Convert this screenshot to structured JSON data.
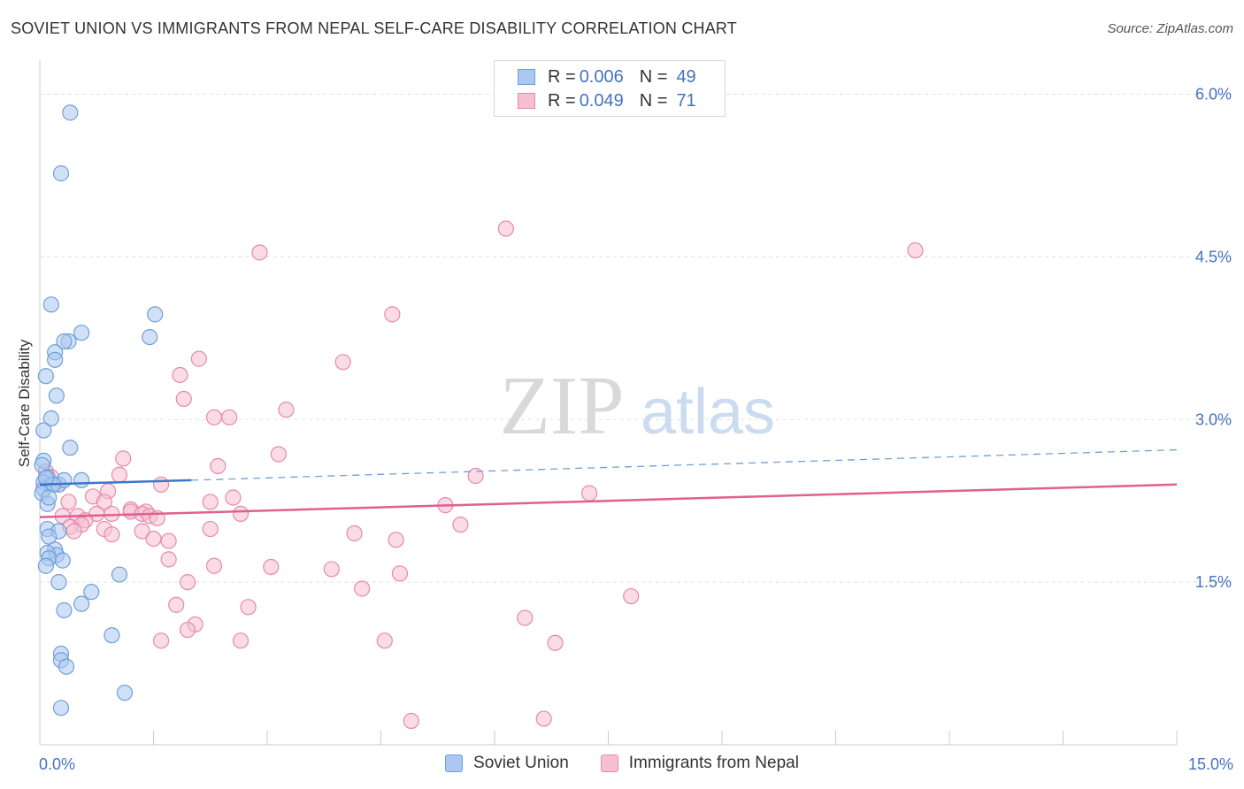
{
  "title": "SOVIET UNION VS IMMIGRANTS FROM NEPAL SELF-CARE DISABILITY CORRELATION CHART",
  "source": "Source: ZipAtlas.com",
  "watermark": {
    "zip": "ZIP",
    "atlas": "atlas"
  },
  "legend": {
    "rows": [
      {
        "r_label": "R = ",
        "r_value": "0.006",
        "n_label": "N = ",
        "n_value": "49"
      },
      {
        "r_label": "R = ",
        "r_value": "0.049",
        "n_label": "N = ",
        "n_value": "71"
      }
    ]
  },
  "colors": {
    "soviet_fill": "#aac8f0",
    "soviet_stroke": "#6f9fd8",
    "soviet_line": "#3a78c9",
    "nepal_fill": "#f7c0d2",
    "nepal_stroke": "#e58aa9",
    "nepal_line": "#e0608f",
    "tick_label": "#4472c4",
    "grid": "#e0e0e0"
  },
  "chart_data": {
    "type": "scatter",
    "title": "SOVIET UNION VS IMMIGRANTS FROM NEPAL SELF-CARE DISABILITY CORRELATION CHART",
    "xlabel": "",
    "ylabel": "Self-Care Disability",
    "xlim": [
      0,
      15
    ],
    "ylim": [
      0,
      6.2
    ],
    "x_tick_labels": [
      "0.0%",
      "15.0%"
    ],
    "y_ticks": [
      1.5,
      3.0,
      4.5,
      6.0
    ],
    "y_tick_labels": [
      "1.5%",
      "3.0%",
      "4.5%",
      "6.0%"
    ],
    "grid": true,
    "legend_position": "top-center",
    "series": [
      {
        "name": "Soviet Union",
        "r": 0.006,
        "n": 49,
        "trend": {
          "x": [
            0,
            2.0
          ],
          "y": [
            2.4,
            2.44
          ],
          "dashed_extension": {
            "x": [
              2.0,
              15.0
            ],
            "y": [
              2.44,
              2.72
            ]
          }
        },
        "points": [
          [
            0.4,
            5.83
          ],
          [
            0.28,
            5.27
          ],
          [
            0.15,
            4.06
          ],
          [
            0.55,
            3.8
          ],
          [
            0.38,
            3.72
          ],
          [
            0.32,
            3.72
          ],
          [
            0.2,
            3.62
          ],
          [
            0.2,
            3.55
          ],
          [
            0.08,
            3.4
          ],
          [
            0.22,
            3.22
          ],
          [
            0.15,
            3.01
          ],
          [
            0.05,
            2.9
          ],
          [
            0.4,
            2.74
          ],
          [
            0.05,
            2.62
          ],
          [
            0.03,
            2.58
          ],
          [
            0.1,
            2.47
          ],
          [
            0.05,
            2.42
          ],
          [
            0.15,
            2.4
          ],
          [
            0.25,
            2.4
          ],
          [
            0.32,
            2.44
          ],
          [
            0.55,
            2.44
          ],
          [
            0.05,
            2.36
          ],
          [
            0.03,
            2.32
          ],
          [
            0.1,
            2.22
          ],
          [
            0.1,
            1.99
          ],
          [
            0.25,
            1.97
          ],
          [
            0.12,
            1.92
          ],
          [
            0.2,
            1.8
          ],
          [
            0.22,
            1.75
          ],
          [
            0.1,
            1.77
          ],
          [
            0.12,
            1.72
          ],
          [
            0.3,
            1.7
          ],
          [
            0.08,
            1.65
          ],
          [
            1.05,
            1.57
          ],
          [
            0.25,
            1.5
          ],
          [
            0.68,
            1.41
          ],
          [
            0.55,
            1.3
          ],
          [
            0.32,
            1.24
          ],
          [
            0.95,
            1.01
          ],
          [
            0.28,
            0.84
          ],
          [
            0.28,
            0.78
          ],
          [
            0.35,
            0.72
          ],
          [
            1.12,
            0.48
          ],
          [
            0.28,
            0.34
          ],
          [
            0.18,
            2.4
          ],
          [
            0.08,
            2.46
          ],
          [
            1.45,
            3.76
          ],
          [
            1.52,
            3.97
          ],
          [
            0.12,
            2.28
          ]
        ]
      },
      {
        "name": "Immigrants from Nepal",
        "r": 0.049,
        "n": 71,
        "trend": {
          "x": [
            0,
            15.0
          ],
          "y": [
            2.1,
            2.4
          ]
        },
        "points": [
          [
            6.15,
            4.76
          ],
          [
            11.55,
            4.56
          ],
          [
            2.9,
            4.54
          ],
          [
            4.65,
            3.97
          ],
          [
            2.1,
            3.56
          ],
          [
            4.0,
            3.53
          ],
          [
            1.85,
            3.41
          ],
          [
            1.9,
            3.19
          ],
          [
            3.25,
            3.09
          ],
          [
            2.3,
            3.02
          ],
          [
            2.5,
            3.02
          ],
          [
            3.15,
            2.68
          ],
          [
            1.1,
            2.64
          ],
          [
            2.35,
            2.57
          ],
          [
            5.75,
            2.48
          ],
          [
            1.05,
            2.49
          ],
          [
            1.6,
            2.4
          ],
          [
            0.9,
            2.34
          ],
          [
            0.08,
            2.52
          ],
          [
            0.15,
            2.47
          ],
          [
            0.7,
            2.29
          ],
          [
            7.25,
            2.32
          ],
          [
            2.55,
            2.28
          ],
          [
            2.25,
            2.24
          ],
          [
            0.38,
            2.24
          ],
          [
            0.85,
            2.24
          ],
          [
            5.35,
            2.21
          ],
          [
            1.2,
            2.17
          ],
          [
            1.2,
            2.15
          ],
          [
            1.4,
            2.15
          ],
          [
            1.35,
            2.13
          ],
          [
            1.45,
            2.11
          ],
          [
            0.95,
            2.13
          ],
          [
            0.75,
            2.13
          ],
          [
            0.5,
            2.11
          ],
          [
            0.6,
            2.07
          ],
          [
            2.65,
            2.13
          ],
          [
            1.55,
            2.09
          ],
          [
            0.3,
            2.11
          ],
          [
            0.55,
            2.03
          ],
          [
            0.4,
            2.01
          ],
          [
            5.55,
            2.03
          ],
          [
            2.25,
            1.99
          ],
          [
            1.35,
            1.97
          ],
          [
            0.85,
            1.99
          ],
          [
            0.95,
            1.94
          ],
          [
            0.45,
            1.97
          ],
          [
            4.15,
            1.95
          ],
          [
            4.7,
            1.89
          ],
          [
            1.5,
            1.9
          ],
          [
            1.7,
            1.88
          ],
          [
            1.7,
            1.71
          ],
          [
            2.3,
            1.65
          ],
          [
            3.05,
            1.64
          ],
          [
            3.85,
            1.62
          ],
          [
            4.75,
            1.58
          ],
          [
            1.95,
            1.5
          ],
          [
            4.25,
            1.44
          ],
          [
            7.8,
            1.37
          ],
          [
            1.8,
            1.29
          ],
          [
            2.75,
            1.27
          ],
          [
            6.4,
            1.17
          ],
          [
            2.05,
            1.11
          ],
          [
            1.95,
            1.06
          ],
          [
            1.6,
            0.96
          ],
          [
            2.65,
            0.96
          ],
          [
            4.55,
            0.96
          ],
          [
            6.8,
            0.94
          ],
          [
            4.9,
            0.22
          ],
          [
            6.65,
            0.24
          ],
          [
            0.25,
            2.4
          ]
        ]
      }
    ]
  }
}
